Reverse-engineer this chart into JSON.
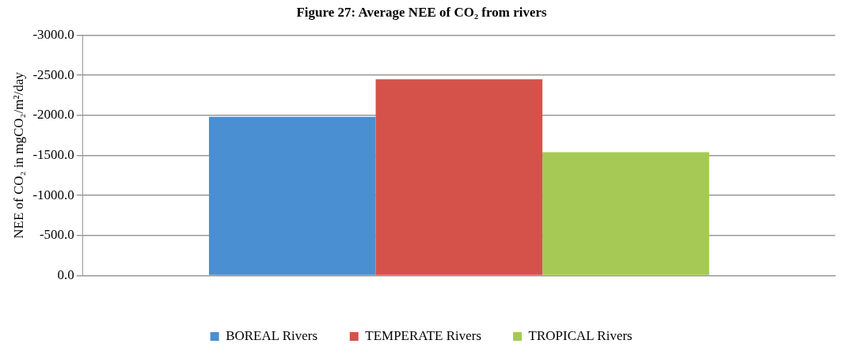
{
  "chart_data": {
    "type": "bar",
    "title": "Figure 27: Average NEE of CO₂ from rivers",
    "ylabel": "NEE of CO₂ in mgCO₂/m²/day",
    "categories": [
      null
    ],
    "series": [
      {
        "name": "BOREAL Rivers",
        "color": "#4a8fd2",
        "values": [
          -1980
        ]
      },
      {
        "name": "TEMPERATE Rivers",
        "color": "#d5524a",
        "values": [
          -2450
        ]
      },
      {
        "name": "TROPICAL Rivers",
        "color": "#a6c955",
        "values": [
          -1540
        ]
      }
    ],
    "ylim": [
      0,
      -3000
    ],
    "yticks": [
      {
        "value": 0,
        "label": "0.0"
      },
      {
        "value": -500,
        "label": "-500.0"
      },
      {
        "value": -1000,
        "label": "-1000.0"
      },
      {
        "value": -1500,
        "label": "-1500.0"
      },
      {
        "value": -2000,
        "label": "-2000.0"
      },
      {
        "value": -2500,
        "label": "-2500.0"
      },
      {
        "value": -3000,
        "label": "-3000.0"
      }
    ],
    "grid": "y",
    "legend": "bottom"
  }
}
